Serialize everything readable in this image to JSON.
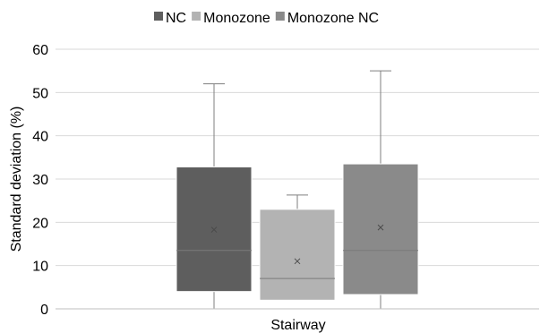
{
  "chart_data": {
    "type": "box",
    "title": "",
    "ylabel": "Standard deviation (%)",
    "xlabel": "",
    "categories": [
      "Stairway"
    ],
    "ylim": [
      0,
      60
    ],
    "yticks": [
      0,
      10,
      20,
      30,
      40,
      50,
      60
    ],
    "grid": true,
    "legend_position": "top",
    "series": [
      {
        "name": "NC",
        "color": "#5e5e5e",
        "min": 0,
        "q1": 4,
        "median": 13.5,
        "mean": 18.3,
        "q3": 32.8,
        "max": 52
      },
      {
        "name": "Monozone",
        "color": "#b3b3b3",
        "min": 2,
        "q1": 2,
        "median": 7,
        "mean": 11,
        "q3": 23,
        "max": 26.3
      },
      {
        "name": "Monozone NC",
        "color": "#8a8a8a",
        "min": 0,
        "q1": 3.3,
        "median": 13.5,
        "mean": 18.8,
        "q3": 33.5,
        "max": 55
      }
    ]
  }
}
